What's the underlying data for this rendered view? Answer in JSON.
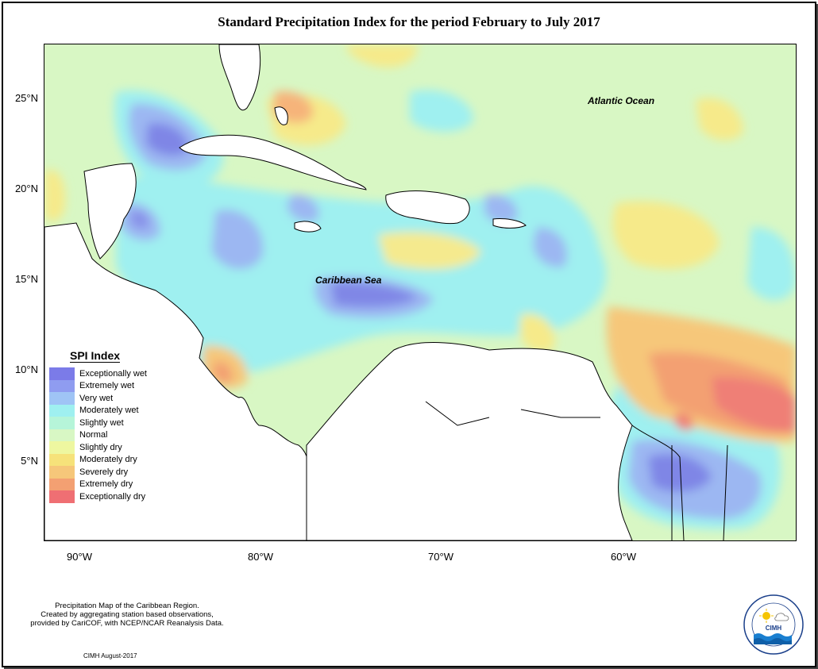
{
  "title": "Standard Precipitation Index for the period February to July 2017",
  "axes": {
    "lat_labels": [
      "25°N",
      "20°N",
      "15°N",
      "10°N",
      "5°N"
    ],
    "lon_labels": [
      "90°W",
      "80°W",
      "70°W",
      "60°W"
    ]
  },
  "regions": {
    "atlantic": "Atlantic Ocean",
    "caribbean": "Caribbean Sea"
  },
  "legend": {
    "title": "SPI Index",
    "items": [
      {
        "label": "Exceptionally wet",
        "color": "#7b7be8"
      },
      {
        "label": "Extremely wet",
        "color": "#8f9cf0"
      },
      {
        "label": "Very wet",
        "color": "#9fc4f5"
      },
      {
        "label": "Moderately wet",
        "color": "#9ff0f0"
      },
      {
        "label": "Slightly wet",
        "color": "#b6f5d9"
      },
      {
        "label": "Normal",
        "color": "#d8f7c4"
      },
      {
        "label": "Slightly dry",
        "color": "#eef7a0"
      },
      {
        "label": "Moderately dry",
        "color": "#f6e27a"
      },
      {
        "label": "Severely dry",
        "color": "#f6c77a"
      },
      {
        "label": "Extremely dry",
        "color": "#f3a072"
      },
      {
        "label": "Exceptionally dry",
        "color": "#ef6f73"
      }
    ]
  },
  "footer": {
    "line1": "Precipitation Map of the Caribbean Region.",
    "line2": "Created by aggregating station based observations,",
    "line3": "provided by CariCOF, with NCEP/NCAR Reanalysis Data.",
    "credit": "CIMH August-2017"
  },
  "logo": {
    "text": "CIMH"
  }
}
